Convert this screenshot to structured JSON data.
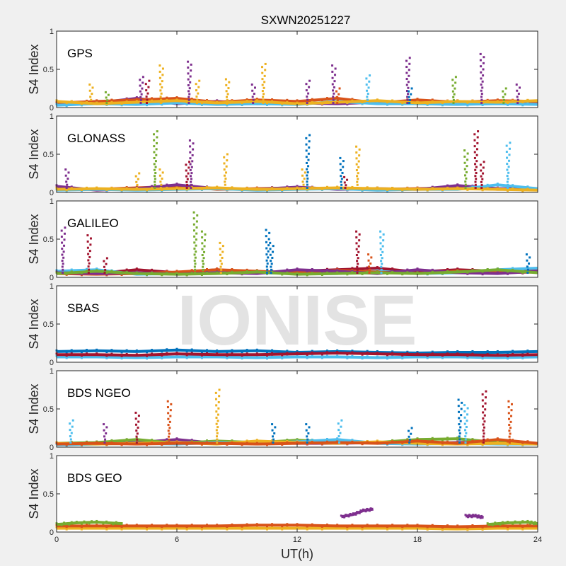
{
  "chart_data": {
    "type": "scatter",
    "title": "SXWN20251227",
    "xlabel": "UT(h)",
    "ylabel": "S4 Index",
    "xlim": [
      0,
      24
    ],
    "ylim": [
      0,
      1
    ],
    "xticks": [
      "0",
      "6",
      "12",
      "18",
      "24"
    ],
    "yticks": [
      "0",
      "0.5",
      "1"
    ],
    "grid": false,
    "watermark": "IONISE",
    "colors": [
      "#0072BD",
      "#D95319",
      "#EDB120",
      "#7E2F8E",
      "#77AC30",
      "#4DBEEE",
      "#A2142F"
    ],
    "baseline_x": [
      0,
      2,
      4,
      6,
      8,
      10,
      12,
      14,
      16,
      18,
      20,
      22,
      24
    ],
    "panels": [
      {
        "label": "GPS",
        "baselines": [
          {
            "color": 3,
            "values": [
              0.04,
              0.06,
              0.12,
              0.05,
              0.08,
              0.05,
              0.06,
              0.05,
              0.07,
              0.05,
              0.08,
              0.06,
              0.05
            ]
          },
          {
            "color": 1,
            "values": [
              0.06,
              0.08,
              0.1,
              0.12,
              0.07,
              0.1,
              0.08,
              0.12,
              0.06,
              0.1,
              0.07,
              0.09,
              0.08
            ]
          },
          {
            "color": 5,
            "values": [
              0.03,
              0.05,
              0.04,
              0.06,
              0.04,
              0.05,
              0.04,
              0.08,
              0.05,
              0.05,
              0.04,
              0.05,
              0.04
            ]
          },
          {
            "color": 2,
            "values": [
              0.08,
              0.05,
              0.07,
              0.09,
              0.06,
              0.08,
              0.05,
              0.07,
              0.09,
              0.06,
              0.08,
              0.07,
              0.09
            ]
          }
        ],
        "spikes": [
          [
            1.7,
            0.3,
            2
          ],
          [
            2.5,
            0.2,
            4
          ],
          [
            4.2,
            0.4,
            3
          ],
          [
            4.5,
            0.35,
            6
          ],
          [
            5.2,
            0.55,
            2
          ],
          [
            6.6,
            0.6,
            3
          ],
          [
            7.0,
            0.35,
            2
          ],
          [
            8.5,
            0.37,
            2
          ],
          [
            9.8,
            0.3,
            3
          ],
          [
            10.3,
            0.57,
            2
          ],
          [
            12.5,
            0.35,
            3
          ],
          [
            13.8,
            0.55,
            3
          ],
          [
            14.0,
            0.25,
            1
          ],
          [
            15.5,
            0.42,
            5
          ],
          [
            17.5,
            0.65,
            3
          ],
          [
            17.6,
            0.25,
            0
          ],
          [
            19.8,
            0.4,
            4
          ],
          [
            21.2,
            0.7,
            3
          ],
          [
            22.3,
            0.25,
            4
          ],
          [
            23.0,
            0.3,
            3
          ]
        ]
      },
      {
        "label": "GLONASS",
        "baselines": [
          {
            "color": 1,
            "values": [
              0.05,
              0.04,
              0.06,
              0.08,
              0.04,
              0.05,
              0.06,
              0.05,
              0.04,
              0.05,
              0.06,
              0.04,
              0.05
            ]
          },
          {
            "color": 3,
            "values": [
              0.08,
              0.03,
              0.05,
              0.1,
              0.05,
              0.04,
              0.07,
              0.04,
              0.05,
              0.04,
              0.09,
              0.05,
              0.04
            ]
          },
          {
            "color": 5,
            "values": [
              0.03,
              0.04,
              0.03,
              0.04,
              0.05,
              0.03,
              0.04,
              0.05,
              0.03,
              0.04,
              0.04,
              0.1,
              0.05
            ]
          },
          {
            "color": 2,
            "values": [
              0.04,
              0.05,
              0.04,
              0.05,
              0.06,
              0.04,
              0.05,
              0.06,
              0.05,
              0.04,
              0.05,
              0.04,
              0.03
            ]
          }
        ],
        "spikes": [
          [
            0.5,
            0.3,
            3
          ],
          [
            4.0,
            0.25,
            2
          ],
          [
            4.9,
            0.8,
            4
          ],
          [
            5.2,
            0.3,
            2
          ],
          [
            6.5,
            0.4,
            6
          ],
          [
            6.7,
            0.68,
            3
          ],
          [
            8.4,
            0.5,
            2
          ],
          [
            12.3,
            0.3,
            2
          ],
          [
            12.5,
            0.75,
            0
          ],
          [
            14.2,
            0.45,
            0
          ],
          [
            14.4,
            0.2,
            6
          ],
          [
            15.0,
            0.6,
            2
          ],
          [
            20.4,
            0.55,
            4
          ],
          [
            20.9,
            0.8,
            6
          ],
          [
            21.2,
            0.4,
            6
          ],
          [
            22.5,
            0.65,
            5
          ]
        ]
      },
      {
        "label": "GALILEO",
        "baselines": [
          {
            "color": 6,
            "values": [
              0.07,
              0.05,
              0.1,
              0.06,
              0.1,
              0.06,
              0.08,
              0.1,
              0.12,
              0.07,
              0.1,
              0.08,
              0.1
            ]
          },
          {
            "color": 5,
            "values": [
              0.08,
              0.1,
              0.04,
              0.05,
              0.08,
              0.06,
              0.05,
              0.05,
              0.08,
              0.05,
              0.06,
              0.1,
              0.12
            ]
          },
          {
            "color": 1,
            "values": [
              0.05,
              0.04,
              0.05,
              0.07,
              0.1,
              0.08,
              0.06,
              0.09,
              0.07,
              0.05,
              0.08,
              0.06,
              0.07
            ]
          },
          {
            "color": 3,
            "values": [
              0.06,
              0.05,
              0.06,
              0.04,
              0.06,
              0.05,
              0.1,
              0.08,
              0.05,
              0.1,
              0.06,
              0.05,
              0.08
            ]
          },
          {
            "color": 4,
            "values": [
              0.05,
              0.08,
              0.05,
              0.04,
              0.05,
              0.07,
              0.04,
              0.05,
              0.06,
              0.05,
              0.07,
              0.1,
              0.06
            ]
          }
        ],
        "spikes": [
          [
            0.3,
            0.65,
            3
          ],
          [
            1.6,
            0.55,
            6
          ],
          [
            2.4,
            0.25,
            6
          ],
          [
            6.9,
            0.85,
            4
          ],
          [
            7.3,
            0.6,
            4
          ],
          [
            8.2,
            0.45,
            2
          ],
          [
            10.5,
            0.62,
            0
          ],
          [
            10.7,
            0.45,
            0
          ],
          [
            15.0,
            0.6,
            6
          ],
          [
            15.6,
            0.3,
            1
          ],
          [
            16.2,
            0.6,
            5
          ],
          [
            23.5,
            0.3,
            0
          ]
        ]
      },
      {
        "label": "SBAS",
        "baselines": [
          {
            "color": 5,
            "values": [
              0.07,
              0.07,
              0.06,
              0.07,
              0.07,
              0.06,
              0.07,
              0.07,
              0.06,
              0.07,
              0.07,
              0.06,
              0.07
            ]
          },
          {
            "color": 0,
            "values": [
              0.14,
              0.15,
              0.14,
              0.16,
              0.14,
              0.15,
              0.13,
              0.14,
              0.13,
              0.12,
              0.13,
              0.13,
              0.14
            ]
          },
          {
            "color": 6,
            "values": [
              0.1,
              0.1,
              0.09,
              0.11,
              0.1,
              0.1,
              0.11,
              0.12,
              0.11,
              0.1,
              0.1,
              0.09,
              0.1
            ]
          }
        ],
        "spikes": []
      },
      {
        "label": "BDS NGEO",
        "baselines": [
          {
            "color": 3,
            "values": [
              0.04,
              0.05,
              0.06,
              0.1,
              0.05,
              0.06,
              0.05,
              0.05,
              0.06,
              0.05,
              0.06,
              0.08,
              0.05
            ]
          },
          {
            "color": 4,
            "values": [
              0.05,
              0.06,
              0.1,
              0.05,
              0.08,
              0.06,
              0.09,
              0.07,
              0.06,
              0.1,
              0.11,
              0.06,
              0.05
            ]
          },
          {
            "color": 5,
            "values": [
              0.03,
              0.04,
              0.05,
              0.04,
              0.06,
              0.05,
              0.07,
              0.1,
              0.05,
              0.04,
              0.05,
              0.04,
              0.04
            ]
          },
          {
            "color": 2,
            "values": [
              0.05,
              0.04,
              0.05,
              0.06,
              0.04,
              0.08,
              0.06,
              0.05,
              0.07,
              0.05,
              0.04,
              0.05,
              0.04
            ]
          },
          {
            "color": 1,
            "values": [
              0.04,
              0.05,
              0.04,
              0.05,
              0.05,
              0.04,
              0.05,
              0.06,
              0.05,
              0.08,
              0.05,
              0.1,
              0.05
            ]
          }
        ],
        "spikes": [
          [
            0.7,
            0.35,
            5
          ],
          [
            2.4,
            0.3,
            3
          ],
          [
            4.0,
            0.45,
            6
          ],
          [
            5.6,
            0.6,
            1
          ],
          [
            8.0,
            0.75,
            2
          ],
          [
            10.8,
            0.3,
            0
          ],
          [
            12.5,
            0.3,
            0
          ],
          [
            14.1,
            0.35,
            5
          ],
          [
            17.6,
            0.25,
            0
          ],
          [
            20.1,
            0.62,
            0
          ],
          [
            20.4,
            0.55,
            5
          ],
          [
            21.3,
            0.73,
            6
          ],
          [
            22.6,
            0.6,
            1
          ]
        ]
      },
      {
        "label": "BDS GEO",
        "baselines": [
          {
            "color": 2,
            "values": [
              0.05,
              0.05,
              0.05,
              0.05,
              0.05,
              0.05,
              0.05,
              0.05,
              0.05,
              0.05,
              0.04,
              0.05,
              0.05
            ]
          },
          {
            "color": 1,
            "values": [
              0.08,
              0.08,
              0.08,
              0.08,
              0.08,
              0.09,
              0.09,
              0.08,
              0.08,
              0.08,
              0.07,
              0.08,
              0.08
            ]
          }
        ],
        "segments": [
          {
            "color": 4,
            "x": [
              0,
              1,
              2,
              3.3
            ],
            "values": [
              0.1,
              0.12,
              0.13,
              0.11
            ]
          },
          {
            "color": 4,
            "x": [
              21.5,
              22.5,
              23.5,
              24
            ],
            "values": [
              0.1,
              0.12,
              0.13,
              0.11
            ]
          },
          {
            "color": 3,
            "x": [
              14.2,
              14.8,
              15.3,
              15.8
            ],
            "values": [
              0.2,
              0.23,
              0.28,
              0.3
            ]
          },
          {
            "color": 3,
            "x": [
              20.4,
              20.9,
              21.3
            ],
            "values": [
              0.21,
              0.21,
              0.19
            ]
          }
        ],
        "spikes": []
      }
    ]
  }
}
